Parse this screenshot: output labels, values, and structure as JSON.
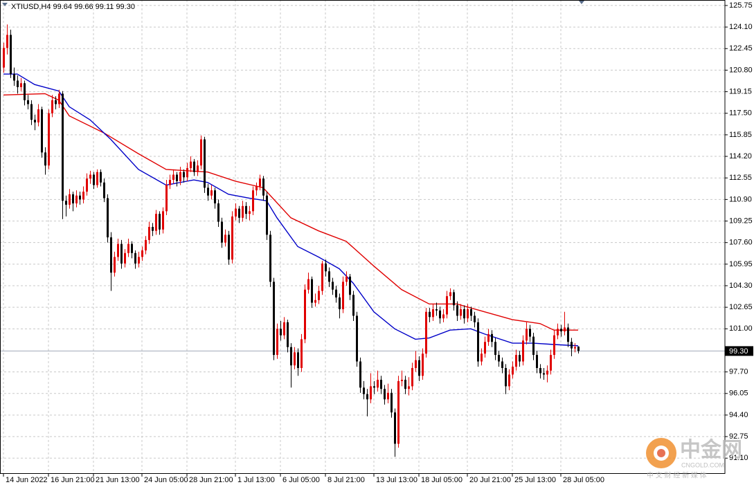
{
  "chart_data": {
    "type": "candlestick",
    "title": "XTIUSD,H4 99.64 99.66 99.11 99.30",
    "up_color": "#e00000",
    "down_color": "#000000",
    "grid": true,
    "xlim": [
      -1,
      208.4
    ],
    "ylim": [
      89.95,
      126.17
    ],
    "yticks": [
      125.75,
      {
        "value": 124.1,
        "label": "124.10"
      },
      122.45,
      {
        "value": 120.8,
        "label": "120.80"
      },
      119.15,
      {
        "value": 117.5,
        "label": "117.50"
      },
      115.85,
      {
        "value": 114.2,
        "label": "114.20"
      },
      112.55,
      {
        "value": 110.9,
        "label": "110.90"
      },
      109.25,
      {
        "value": 107.6,
        "label": "107.60"
      },
      105.95,
      {
        "value": 104.3,
        "label": "104.30"
      },
      102.65,
      {
        "value": 101,
        "label": "101.00"
      },
      {
        "value": 97.7,
        "label": "97.70"
      },
      96.05,
      {
        "value": 94.4,
        "label": "94.40"
      },
      92.75,
      {
        "value": 91.1,
        "label": "91.10"
      }
    ],
    "xticks": [
      {
        "value": 0,
        "label": "14 Jun 2022"
      },
      {
        "value": 13,
        "label": "16 Jun 21:00"
      },
      {
        "value": 26,
        "label": "21 Jun 13:00"
      },
      {
        "value": 40,
        "label": "24 Jun 05:00"
      },
      {
        "value": 53,
        "label": "28 Jun 21:00"
      },
      {
        "value": 67,
        "label": "1 Jul 13:00"
      },
      {
        "value": 80,
        "label": "6 Jul 05:00"
      },
      {
        "value": 93,
        "label": "8 Jul 21:00"
      },
      {
        "value": 107,
        "label": "13 Jul 13:00"
      },
      {
        "value": 120,
        "label": "18 Jul 05:00"
      },
      {
        "value": 134,
        "label": "20 Jul 21:00"
      },
      {
        "value": 147,
        "label": "25 Jul 13:00"
      },
      {
        "value": 161,
        "label": "28 Jul 05:00"
      }
    ],
    "current_price": {
      "value": 99.3,
      "label": "99.30",
      "color": "#a0a8b8"
    },
    "candles": [
      [
        121.0,
        122.9,
        120.6,
        122.5
      ],
      [
        122.5,
        124.3,
        122.0,
        123.5
      ],
      [
        123.5,
        123.9,
        120.2,
        120.5
      ],
      [
        120.5,
        121.0,
        119.6,
        120.0
      ],
      [
        120.0,
        120.4,
        119.0,
        119.5
      ],
      [
        119.5,
        120.2,
        119.2,
        119.8
      ],
      [
        119.8,
        120.0,
        118.1,
        118.5
      ],
      [
        118.5,
        118.9,
        117.8,
        118.2
      ],
      [
        118.2,
        118.5,
        116.6,
        117.0
      ],
      [
        117.0,
        117.4,
        116.2,
        116.8
      ],
      [
        116.8,
        118.2,
        116.5,
        117.8
      ],
      [
        117.8,
        118.0,
        114.1,
        114.5
      ],
      [
        114.5,
        114.9,
        112.8,
        113.5
      ],
      [
        113.5,
        117.8,
        113.2,
        117.5
      ],
      [
        117.5,
        118.9,
        117.2,
        118.5
      ],
      [
        118.5,
        118.8,
        117.8,
        118.2
      ],
      [
        118.2,
        119.3,
        117.9,
        119.0
      ],
      [
        119.0,
        119.2,
        109.4,
        110.8
      ],
      [
        110.8,
        111.2,
        109.6,
        110.5
      ],
      [
        110.5,
        111.7,
        110.2,
        111.3
      ],
      [
        111.3,
        111.5,
        110.0,
        110.6
      ],
      [
        110.6,
        111.6,
        110.3,
        111.2
      ],
      [
        111.2,
        111.5,
        110.5,
        110.9
      ],
      [
        110.9,
        111.9,
        110.6,
        111.5
      ],
      [
        111.5,
        112.9,
        111.2,
        112.5
      ],
      [
        112.5,
        113.1,
        112.1,
        112.8
      ],
      [
        112.8,
        113.0,
        111.7,
        112.0
      ],
      [
        112.0,
        113.2,
        111.8,
        113.0
      ],
      [
        113.0,
        113.2,
        111.9,
        112.2
      ],
      [
        112.2,
        112.5,
        110.7,
        111.0
      ],
      [
        111.0,
        111.3,
        107.6,
        108.0
      ],
      [
        108.0,
        108.4,
        103.9,
        105.3
      ],
      [
        105.3,
        106.9,
        105.0,
        106.5
      ],
      [
        106.5,
        107.9,
        106.2,
        107.5
      ],
      [
        107.5,
        107.8,
        105.6,
        106.0
      ],
      [
        106.0,
        107.1,
        105.7,
        106.8
      ],
      [
        106.8,
        107.9,
        106.5,
        107.5
      ],
      [
        107.5,
        107.7,
        106.4,
        106.8
      ],
      [
        106.8,
        107.0,
        105.6,
        106.0
      ],
      [
        106.0,
        106.9,
        105.7,
        106.5
      ],
      [
        106.5,
        107.3,
        106.2,
        107.0
      ],
      [
        107.0,
        108.1,
        106.7,
        107.8
      ],
      [
        107.8,
        109.2,
        107.5,
        108.8
      ],
      [
        108.8,
        109.1,
        108.1,
        108.5
      ],
      [
        108.5,
        110.1,
        108.2,
        109.8
      ],
      [
        109.8,
        110.0,
        108.2,
        108.6
      ],
      [
        108.6,
        110.3,
        108.3,
        110.0
      ],
      [
        110.0,
        112.4,
        109.7,
        112.0
      ],
      [
        112.0,
        112.8,
        111.7,
        112.4
      ],
      [
        112.4,
        113.2,
        112.1,
        112.8
      ],
      [
        112.8,
        113.0,
        111.9,
        112.3
      ],
      [
        112.3,
        113.4,
        112.0,
        113.0
      ],
      [
        113.0,
        113.2,
        112.2,
        112.6
      ],
      [
        112.6,
        113.7,
        112.3,
        113.3
      ],
      [
        113.3,
        114.2,
        113.0,
        113.8
      ],
      [
        113.8,
        114.0,
        112.7,
        113.0
      ],
      [
        113.0,
        113.9,
        112.7,
        113.5
      ],
      [
        113.5,
        115.8,
        113.2,
        115.5
      ],
      [
        115.5,
        115.7,
        111.4,
        111.8
      ],
      [
        111.8,
        112.1,
        110.8,
        111.2
      ],
      [
        111.2,
        112.0,
        110.9,
        111.6
      ],
      [
        111.6,
        111.8,
        110.2,
        110.6
      ],
      [
        110.6,
        110.9,
        108.8,
        109.2
      ],
      [
        109.2,
        109.5,
        107.2,
        107.6
      ],
      [
        107.6,
        108.6,
        107.3,
        108.2
      ],
      [
        108.2,
        108.5,
        105.9,
        106.3
      ],
      [
        106.3,
        110.0,
        106.0,
        109.6
      ],
      [
        109.6,
        110.6,
        109.3,
        110.2
      ],
      [
        110.2,
        110.4,
        109.1,
        109.5
      ],
      [
        109.5,
        110.8,
        109.2,
        110.4
      ],
      [
        110.4,
        110.7,
        109.4,
        109.8
      ],
      [
        109.8,
        110.4,
        109.3,
        110.0
      ],
      [
        110.0,
        111.9,
        109.7,
        111.6
      ],
      [
        111.6,
        112.2,
        111.2,
        111.9
      ],
      [
        111.9,
        112.8,
        111.6,
        112.5
      ],
      [
        112.5,
        112.7,
        110.8,
        111.2
      ],
      [
        111.2,
        111.5,
        107.8,
        108.2
      ],
      [
        108.2,
        108.5,
        104.2,
        104.6
      ],
      [
        104.6,
        104.9,
        98.6,
        99.0
      ],
      [
        99.0,
        101.4,
        98.7,
        101.0
      ],
      [
        101.0,
        101.6,
        100.1,
        100.5
      ],
      [
        100.5,
        101.9,
        100.2,
        101.5
      ],
      [
        101.5,
        101.7,
        99.2,
        99.6
      ],
      [
        99.6,
        99.9,
        96.5,
        98.2
      ],
      [
        98.2,
        99.6,
        97.9,
        99.2
      ],
      [
        99.2,
        99.5,
        97.4,
        98.0
      ],
      [
        98.0,
        100.6,
        97.7,
        100.2
      ],
      [
        100.2,
        104.4,
        99.9,
        104.0
      ],
      [
        104.0,
        105.3,
        103.7,
        104.8
      ],
      [
        104.8,
        105.0,
        102.6,
        103.0
      ],
      [
        103.0,
        103.7,
        102.7,
        103.2
      ],
      [
        103.2,
        104.3,
        102.9,
        103.9
      ],
      [
        103.9,
        106.2,
        103.6,
        106.0
      ],
      [
        106.0,
        106.3,
        105.0,
        105.4
      ],
      [
        105.4,
        105.7,
        104.2,
        104.6
      ],
      [
        104.6,
        104.9,
        103.6,
        104.0
      ],
      [
        104.0,
        104.3,
        103.0,
        103.4
      ],
      [
        103.4,
        103.7,
        101.8,
        102.5
      ],
      [
        102.5,
        105.0,
        102.2,
        104.6
      ],
      [
        104.6,
        105.4,
        104.3,
        105.0
      ],
      [
        105.0,
        105.2,
        103.2,
        103.6
      ],
      [
        103.6,
        103.9,
        101.6,
        102.0
      ],
      [
        102.0,
        102.3,
        98.1,
        98.5
      ],
      [
        98.5,
        98.8,
        96.1,
        96.5
      ],
      [
        96.5,
        97.0,
        95.6,
        96.0
      ],
      [
        96.0,
        96.4,
        94.3,
        95.6
      ],
      [
        95.6,
        97.6,
        95.3,
        96.6
      ],
      [
        96.6,
        97.0,
        96.0,
        96.5
      ],
      [
        96.5,
        97.8,
        96.2,
        97.1
      ],
      [
        97.1,
        97.4,
        96.0,
        96.4
      ],
      [
        96.4,
        96.7,
        95.2,
        95.6
      ],
      [
        95.6,
        96.8,
        95.3,
        96.1
      ],
      [
        96.1,
        96.4,
        94.2,
        94.6
      ],
      [
        94.6,
        94.9,
        91.2,
        92.2
      ],
      [
        92.2,
        97.4,
        91.9,
        97.0
      ],
      [
        97.0,
        97.8,
        96.6,
        97.1
      ],
      [
        97.1,
        97.4,
        96.0,
        96.4
      ],
      [
        96.4,
        97.3,
        95.9,
        96.6
      ],
      [
        96.6,
        98.4,
        96.3,
        98.0
      ],
      [
        98.0,
        99.3,
        97.7,
        98.6
      ],
      [
        98.6,
        98.9,
        97.0,
        97.4
      ],
      [
        97.4,
        99.5,
        97.1,
        99.1
      ],
      [
        99.1,
        102.6,
        98.8,
        102.3
      ],
      [
        102.3,
        102.6,
        101.5,
        101.9
      ],
      [
        101.9,
        102.9,
        101.6,
        102.5
      ],
      [
        102.5,
        103.0,
        102.0,
        102.4
      ],
      [
        102.4,
        102.7,
        101.4,
        101.8
      ],
      [
        101.8,
        102.5,
        101.5,
        102.1
      ],
      [
        102.1,
        103.9,
        101.8,
        103.5
      ],
      [
        103.5,
        104.1,
        103.2,
        103.8
      ],
      [
        103.8,
        104.0,
        102.4,
        102.8
      ],
      [
        102.8,
        103.1,
        101.6,
        102.0
      ],
      [
        102.0,
        102.9,
        101.7,
        102.5
      ],
      [
        102.5,
        102.8,
        101.4,
        101.8
      ],
      [
        101.8,
        102.9,
        101.5,
        102.5
      ],
      [
        102.5,
        102.7,
        101.6,
        102.0
      ],
      [
        102.0,
        102.3,
        101.1,
        101.5
      ],
      [
        101.5,
        101.8,
        98.1,
        98.5
      ],
      [
        98.5,
        99.5,
        98.2,
        99.1
      ],
      [
        99.1,
        100.4,
        98.8,
        100.0
      ],
      [
        100.0,
        101.0,
        99.7,
        100.6
      ],
      [
        100.6,
        100.9,
        99.6,
        100.0
      ],
      [
        100.0,
        100.3,
        98.6,
        99.0
      ],
      [
        99.0,
        99.3,
        98.1,
        98.5
      ],
      [
        98.5,
        98.8,
        97.6,
        98.0
      ],
      [
        98.0,
        98.3,
        96.0,
        96.6
      ],
      [
        96.6,
        97.9,
        96.3,
        97.5
      ],
      [
        97.5,
        98.5,
        97.2,
        98.1
      ],
      [
        98.1,
        99.4,
        97.8,
        99.0
      ],
      [
        99.0,
        99.3,
        98.1,
        98.5
      ],
      [
        98.5,
        100.5,
        98.2,
        100.1
      ],
      [
        100.1,
        101.5,
        99.8,
        101.0
      ],
      [
        101.0,
        101.3,
        100.0,
        100.4
      ],
      [
        100.4,
        100.7,
        98.6,
        99.0
      ],
      [
        99.0,
        99.3,
        97.6,
        98.0
      ],
      [
        98.0,
        98.3,
        97.2,
        97.6
      ],
      [
        97.6,
        98.0,
        97.1,
        97.5
      ],
      [
        97.5,
        98.2,
        96.9,
        97.8
      ],
      [
        97.8,
        99.4,
        97.5,
        99.0
      ],
      [
        99.0,
        100.9,
        98.7,
        100.5
      ],
      [
        100.5,
        101.4,
        100.2,
        101.0
      ],
      [
        101.0,
        101.3,
        100.4,
        100.8
      ],
      [
        100.8,
        102.3,
        100.5,
        101.1
      ],
      [
        101.1,
        101.4,
        99.6,
        100.0
      ],
      [
        100.0,
        100.3,
        98.9,
        99.5
      ],
      [
        99.5,
        99.9,
        99.2,
        99.6
      ],
      [
        99.64,
        99.66,
        99.11,
        99.3
      ]
    ],
    "lines": [
      {
        "color": "#e00000",
        "x": [
          0,
          12,
          16,
          19,
          29,
          39,
          47,
          59,
          67,
          75,
          83,
          91,
          99,
          107,
          115,
          123,
          131,
          139,
          147,
          155,
          159,
          166
        ],
        "values": [
          118.9,
          119.0,
          118.5,
          117.3,
          116.0,
          114.4,
          113.2,
          113.0,
          112.3,
          111.8,
          109.5,
          108.5,
          107.7,
          105.8,
          104.0,
          102.9,
          102.9,
          102.3,
          101.7,
          101.4,
          100.9,
          100.9
        ]
      },
      {
        "color": "#0000c8",
        "x": [
          0,
          4,
          9,
          16,
          19,
          25,
          31,
          39,
          47,
          55,
          59,
          65,
          71,
          76,
          79,
          85,
          91,
          97,
          101,
          107,
          113,
          119,
          123,
          129,
          135,
          139,
          147,
          153,
          159,
          166
        ],
        "values": [
          120.5,
          120.5,
          119.7,
          119.2,
          118.0,
          117.0,
          115.5,
          113.2,
          112.0,
          112.4,
          112.2,
          111.3,
          111.0,
          110.8,
          109.5,
          107.3,
          106.5,
          105.6,
          104.5,
          102.3,
          101.0,
          100.2,
          100.3,
          100.9,
          101.0,
          100.6,
          99.9,
          99.9,
          99.8,
          99.7
        ]
      }
    ],
    "watermark": {
      "name": "中金网",
      "site": "CNGOLD.COM",
      "slogan": "中 文 财 经 新 媒 体"
    }
  }
}
